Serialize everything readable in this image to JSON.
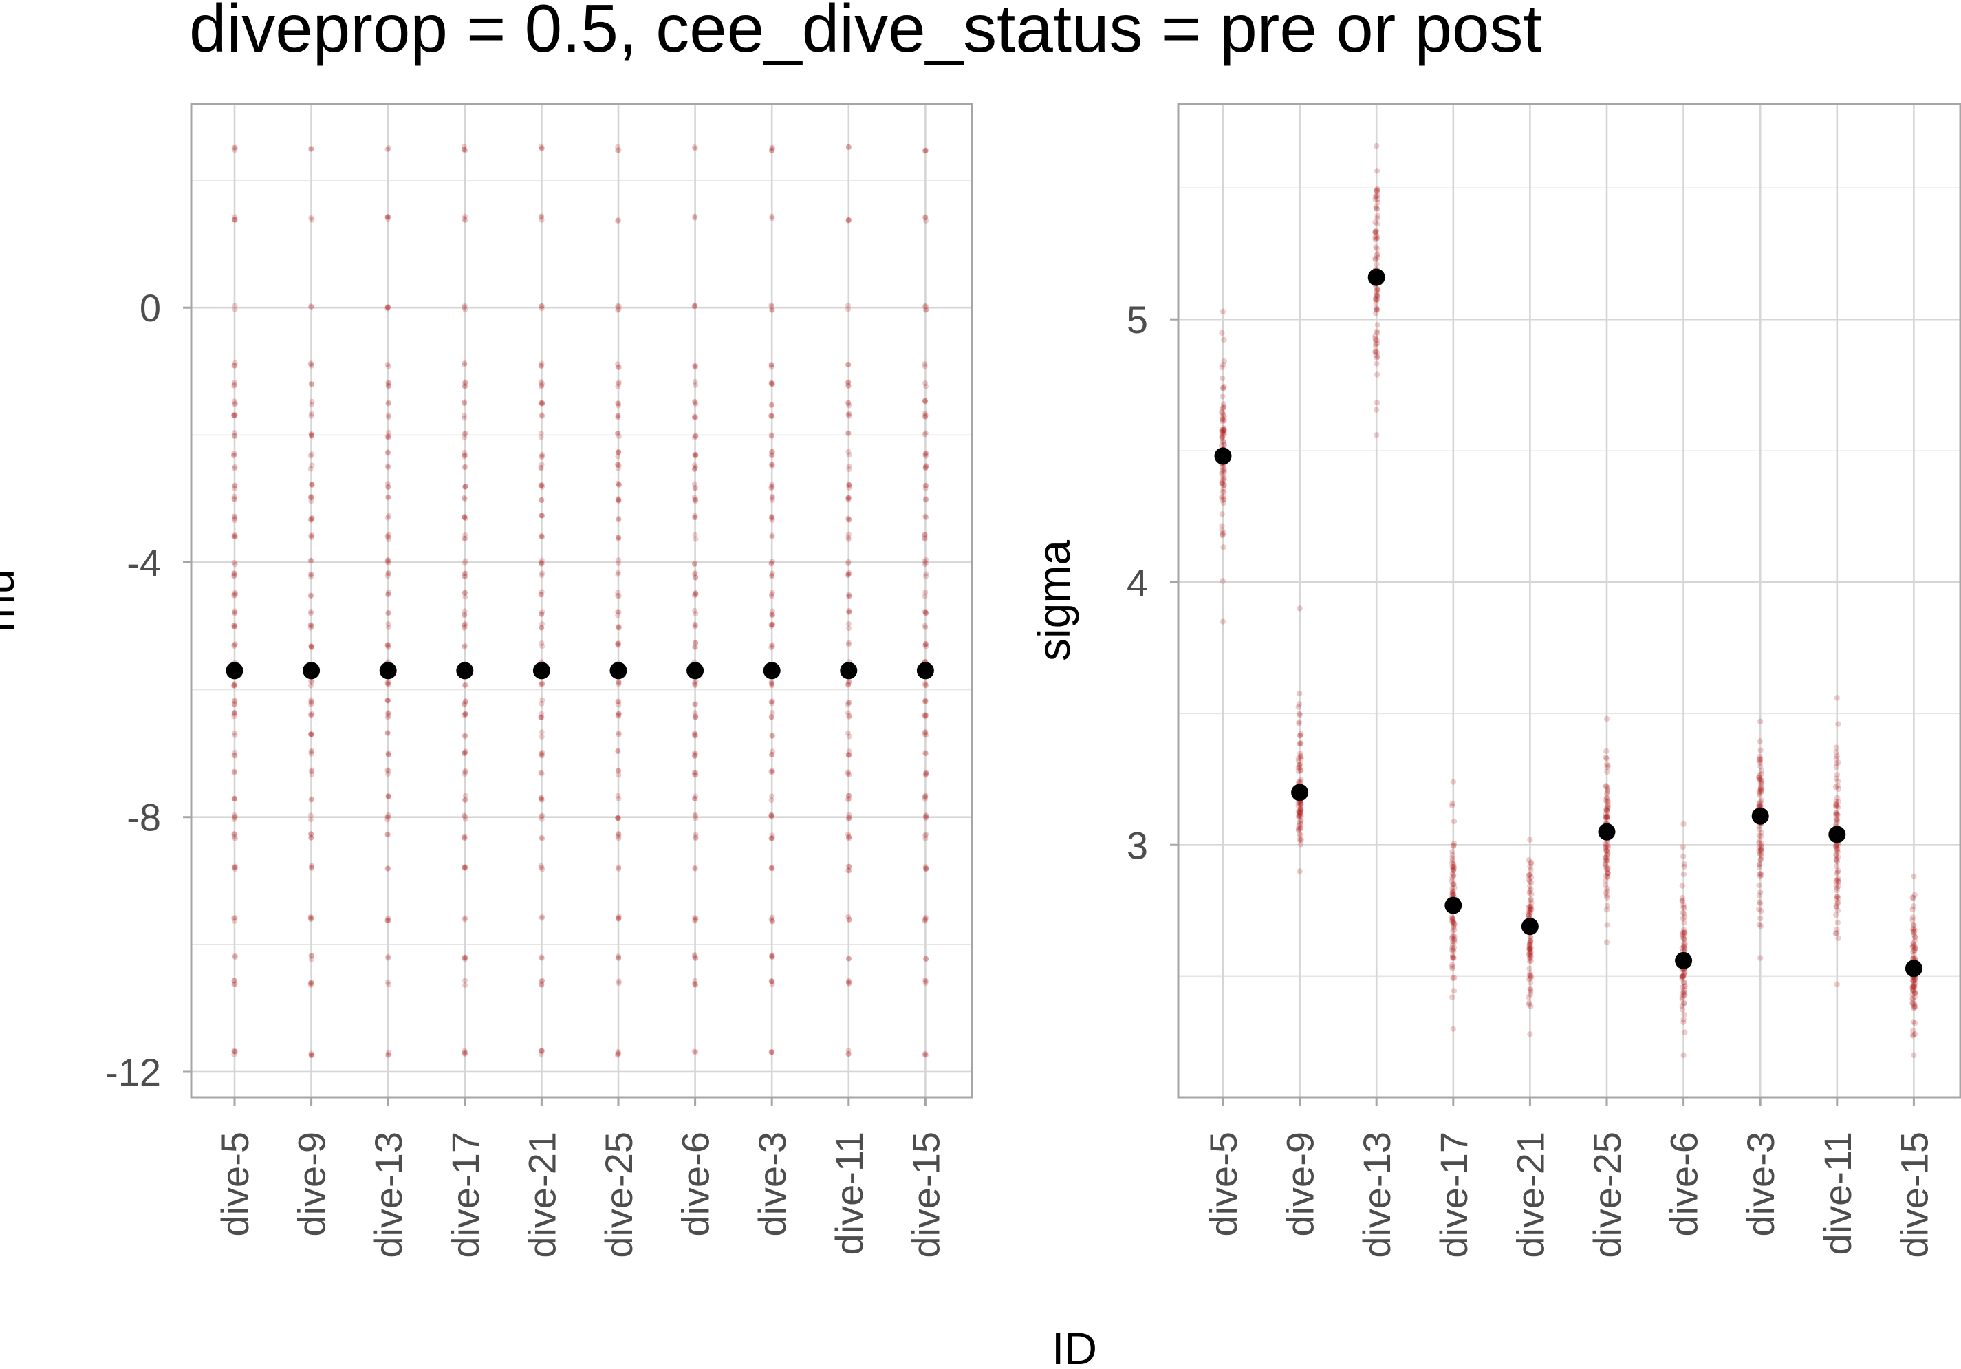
{
  "title": "diveprop = 0.5, cee_dive_status = pre or post",
  "xlabel": "ID",
  "colors": {
    "draws": "#b22222",
    "estimate": "#000000"
  },
  "chart_data": [
    {
      "type": "scatter",
      "panel": "mu",
      "ylabel": "mu",
      "categories": [
        "dive-5",
        "dive-9",
        "dive-13",
        "dive-17",
        "dive-21",
        "dive-25",
        "dive-6",
        "dive-3",
        "dive-11",
        "dive-15"
      ],
      "ylim": [
        -12.4,
        3.2
      ],
      "yticks": [
        0,
        -4,
        -8,
        -12
      ],
      "ytick_labels": [
        "0",
        "-4",
        "-8",
        "-12"
      ],
      "estimate": [
        -5.7,
        -5.7,
        -5.7,
        -5.7,
        -5.7,
        -5.7,
        -5.7,
        -5.7,
        -5.7,
        -5.7
      ],
      "draw_levels": [
        2.5,
        1.4,
        0.0,
        -0.9,
        -1.2,
        -1.5,
        -1.7,
        -2.0,
        -2.3,
        -2.5,
        -2.8,
        -3.0,
        -3.3,
        -3.6,
        -4.0,
        -4.2,
        -4.5,
        -4.8,
        -5.0,
        -5.3,
        -5.6,
        -5.9,
        -6.2,
        -6.4,
        -6.7,
        -7.0,
        -7.3,
        -7.7,
        -8.0,
        -8.3,
        -8.8,
        -9.6,
        -10.2,
        -10.6,
        -11.7
      ],
      "grid": true
    },
    {
      "type": "scatter",
      "panel": "sigma",
      "ylabel": "sigma",
      "categories": [
        "dive-5",
        "dive-9",
        "dive-13",
        "dive-17",
        "dive-21",
        "dive-25",
        "dive-6",
        "dive-3",
        "dive-11",
        "dive-15"
      ],
      "ylim": [
        2.04,
        5.82
      ],
      "yticks": [
        3,
        4,
        5
      ],
      "ytick_labels": [
        "3",
        "4",
        "5"
      ],
      "estimate": [
        4.48,
        3.2,
        5.16,
        2.77,
        2.69,
        3.05,
        2.56,
        3.11,
        3.04,
        2.53
      ],
      "draw_range": [
        [
          3.85,
          5.03
        ],
        [
          2.9,
          3.9
        ],
        [
          4.56,
          5.66
        ],
        [
          2.3,
          3.24
        ],
        [
          2.28,
          3.02
        ],
        [
          2.63,
          3.48
        ],
        [
          2.2,
          3.08
        ],
        [
          2.57,
          3.47
        ],
        [
          2.47,
          3.56
        ],
        [
          2.2,
          2.88
        ]
      ],
      "grid": true
    }
  ]
}
